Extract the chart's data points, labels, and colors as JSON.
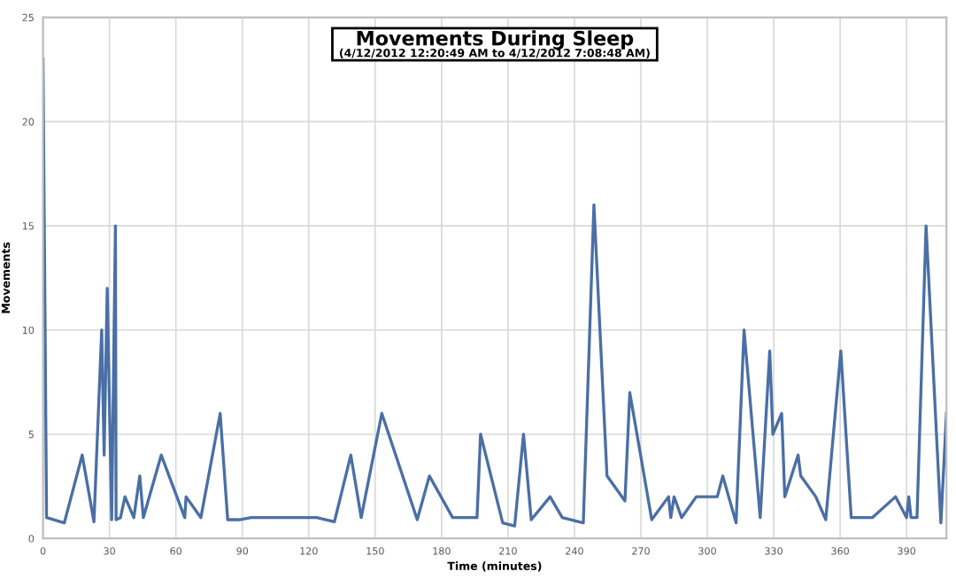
{
  "chart_data": {
    "type": "line",
    "title": "Movements During Sleep",
    "subtitle": "(4/12/2012 12:20:49 AM to 4/12/2012 7:08:48 AM)",
    "xlabel": "Time (minutes)",
    "ylabel": "Movements",
    "series": [
      {
        "color": "#4a6fa5",
        "x": [
          0,
          1.6,
          9.6,
          17.7,
          23,
          26.5,
          27.6,
          29,
          31,
          32.7,
          33,
          35,
          37,
          41,
          43.7,
          45.3,
          53.4,
          64,
          64.6,
          71.3,
          80,
          83.4,
          88.7,
          94,
          123.6,
          131.6,
          139,
          143.7,
          153,
          169,
          174.5,
          185,
          196,
          197.6,
          207.6,
          213,
          217,
          220.5,
          229,
          234.5,
          244,
          248.8,
          254.7,
          262.8,
          265,
          274.9,
          282.5,
          283.5,
          285,
          288.4,
          295,
          304.5,
          307,
          313,
          316.6,
          323.9,
          328.2,
          329.6,
          333.6,
          335,
          341,
          342.2,
          349,
          353.5,
          360.3,
          365,
          374.5,
          385,
          390,
          391,
          392,
          394.7,
          398.8,
          405.5,
          408
        ],
        "values": [
          23,
          1,
          0.75,
          4,
          0.8,
          10,
          4,
          12,
          0.9,
          15,
          0.9,
          1,
          2,
          1,
          3,
          1,
          4,
          1,
          2,
          1,
          6,
          0.9,
          0.9,
          1,
          1,
          0.8,
          4,
          1,
          6,
          0.9,
          3,
          1,
          1,
          5,
          0.75,
          0.6,
          5,
          0.9,
          2,
          1,
          0.75,
          16,
          3,
          1.8,
          7,
          0.9,
          2,
          1,
          2,
          1,
          2,
          2,
          3,
          0.75,
          10,
          1,
          9,
          5,
          6,
          2,
          4,
          3,
          2,
          0.9,
          9,
          1,
          1,
          2,
          1,
          2,
          1,
          1,
          15,
          0.75,
          6
        ]
      }
    ],
    "xlim": [
      0,
      408
    ],
    "xticks": [
      0,
      30,
      60,
      90,
      120,
      150,
      180,
      210,
      240,
      270,
      300,
      330,
      360,
      390
    ],
    "ylim": [
      0,
      25
    ],
    "yticks": [
      0,
      5,
      10,
      15,
      20,
      25
    ],
    "grid": true,
    "legend": false
  }
}
